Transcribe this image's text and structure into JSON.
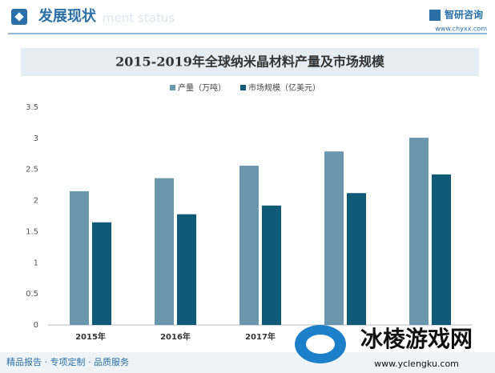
{
  "header": {
    "title": "发展现状",
    "subtitle": "ment status",
    "brand": "智研咨询",
    "website": "www.chyxx.com"
  },
  "chart_data": {
    "type": "bar",
    "title": "2015-2019年全球纳米晶材料产量及市场规模",
    "categories": [
      "2015年",
      "2016年",
      "2017年",
      null,
      null
    ],
    "series": [
      {
        "name": "产量（万吨）",
        "color": "#6a97ad",
        "values": [
          2.15,
          2.36,
          2.56,
          2.79,
          3.01
        ]
      },
      {
        "name": "市场规模（亿美元）",
        "color": "#0e5a77",
        "values": [
          1.65,
          1.78,
          1.92,
          2.12,
          2.42
        ]
      }
    ],
    "ylim": [
      0,
      3.5
    ],
    "yticks": [
      0,
      0.5,
      1,
      1.5,
      2,
      2.5,
      3,
      3.5
    ],
    "grid": false,
    "legend": "top"
  },
  "footer": {
    "text": "精品报告 · 专项定制 · 品质服务"
  },
  "overlay": {
    "name": "冰棱游戏网",
    "url": "www.yclengku.com"
  }
}
